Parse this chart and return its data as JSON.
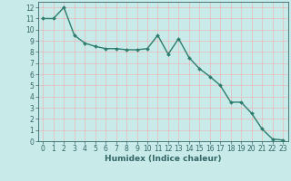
{
  "x": [
    0,
    1,
    2,
    3,
    4,
    5,
    6,
    7,
    8,
    9,
    10,
    11,
    12,
    13,
    14,
    15,
    16,
    17,
    18,
    19,
    20,
    21,
    22,
    23
  ],
  "y": [
    11,
    11,
    12,
    9.5,
    8.8,
    8.5,
    8.3,
    8.3,
    8.2,
    8.2,
    8.3,
    9.5,
    7.8,
    9.2,
    7.5,
    6.5,
    5.8,
    5.0,
    3.5,
    3.5,
    2.5,
    1.1,
    0.2,
    0.1
  ],
  "line_color": "#2d7d6e",
  "marker": "D",
  "marker_size": 2.0,
  "bg_color": "#c8eae8",
  "grid_color": "#e8b8b8",
  "xlabel": "Humidex (Indice chaleur)",
  "xlim": [
    -0.5,
    23.5
  ],
  "ylim": [
    0,
    12.5
  ],
  "xticks": [
    0,
    1,
    2,
    3,
    4,
    5,
    6,
    7,
    8,
    9,
    10,
    11,
    12,
    13,
    14,
    15,
    16,
    17,
    18,
    19,
    20,
    21,
    22,
    23
  ],
  "yticks": [
    0,
    1,
    2,
    3,
    4,
    5,
    6,
    7,
    8,
    9,
    10,
    11,
    12
  ],
  "tick_fontsize": 5.5,
  "xlabel_fontsize": 6.5,
  "line_width": 1.0
}
